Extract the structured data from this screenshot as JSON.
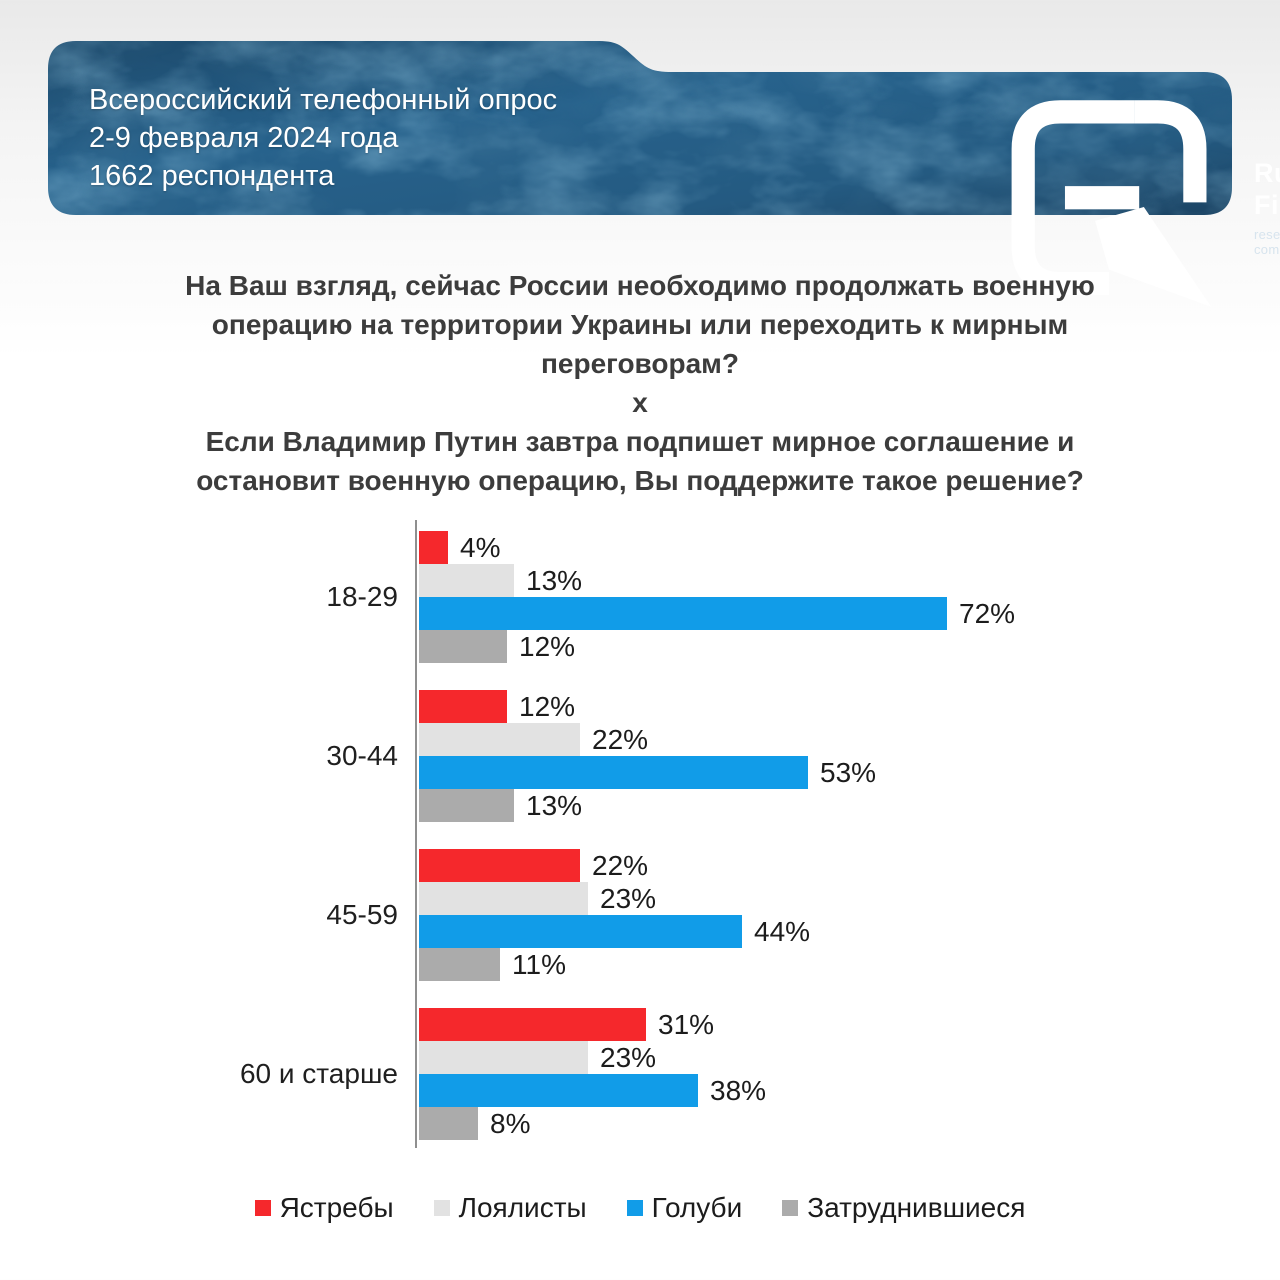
{
  "header": {
    "line1": "Всероссийский телефонный опрос",
    "line2": "2-9 февраля 2024 года",
    "line3": "1662 респондента",
    "logo": {
      "brand_line1": "Russian",
      "brand_line2": "Field",
      "tagline": "research company"
    }
  },
  "question": {
    "part1": "На Ваш взгляд, сейчас России необходимо продолжать военную операцию на территории Украины или переходить к мирным переговорам?",
    "separator": "х",
    "part2": "Если Владимир Путин завтра подпишет мирное соглашение и остановит военную операцию, Вы поддержите такое решение?"
  },
  "chart_data": {
    "type": "bar",
    "orientation": "horizontal",
    "categories": [
      "18-29",
      "30-44",
      "45-59",
      "60 и старше"
    ],
    "series": [
      {
        "name": "Ястребы",
        "color": "#f5282c",
        "values": [
          4,
          12,
          22,
          31
        ]
      },
      {
        "name": "Лоялисты",
        "color": "#e2e2e2",
        "values": [
          13,
          22,
          23,
          23
        ]
      },
      {
        "name": "Голуби",
        "color": "#119ce8",
        "values": [
          72,
          53,
          44,
          38
        ]
      },
      {
        "name": "Затруднившиеся",
        "color": "#ababab",
        "values": [
          12,
          13,
          11,
          8
        ]
      }
    ],
    "value_suffix": "%",
    "xlim": [
      0,
      100
    ],
    "grid": false,
    "legend_position": "bottom",
    "title": "",
    "xlabel": "",
    "ylabel": ""
  },
  "colors": {
    "banner_base": "#24597f",
    "banner_dark": "#1d4668",
    "banner_light": "#3f83b0",
    "axis": "#8f8f8f",
    "text": "#1c1c1c"
  }
}
